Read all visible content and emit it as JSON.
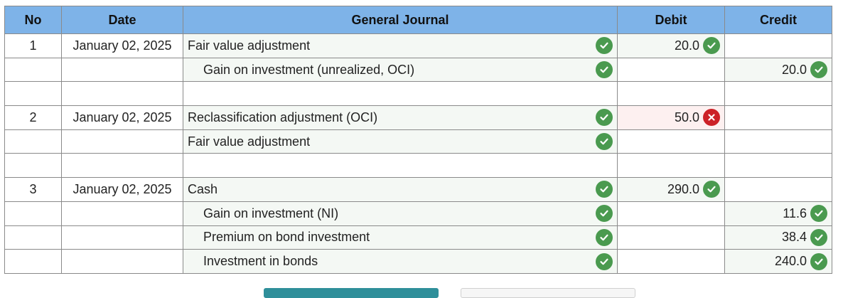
{
  "headers": {
    "no": "No",
    "date": "Date",
    "journal": "General Journal",
    "debit": "Debit",
    "credit": "Credit"
  },
  "entries": [
    {
      "no": "1",
      "date": "January 02, 2025",
      "account": "Fair value adjustment",
      "debit": "20.0",
      "credit": ""
    },
    {
      "no": "",
      "date": "",
      "account": "Gain on investment (unrealized, OCI)",
      "debit": "",
      "credit": "20.0"
    },
    {
      "no": "2",
      "date": "January 02, 2025",
      "account": "Reclassification adjustment (OCI)",
      "debit": "50.0",
      "credit": ""
    },
    {
      "no": "",
      "date": "",
      "account": "Fair value adjustment",
      "debit": "",
      "credit": ""
    },
    {
      "no": "3",
      "date": "January 02, 2025",
      "account": "Cash",
      "debit": "290.0",
      "credit": ""
    },
    {
      "no": "",
      "date": "",
      "account": "Gain on investment (NI)",
      "debit": "",
      "credit": "11.6"
    },
    {
      "no": "",
      "date": "",
      "account": "Premium on bond investment",
      "debit": "",
      "credit": "38.4"
    },
    {
      "no": "",
      "date": "",
      "account": "Investment in bonds",
      "debit": "",
      "credit": "240.0"
    }
  ],
  "status": {
    "correct": "check-icon",
    "incorrect": "x-icon"
  },
  "colors": {
    "header": "#7eb3e8",
    "correct": "#4a9a4f",
    "incorrect": "#cc2127"
  }
}
